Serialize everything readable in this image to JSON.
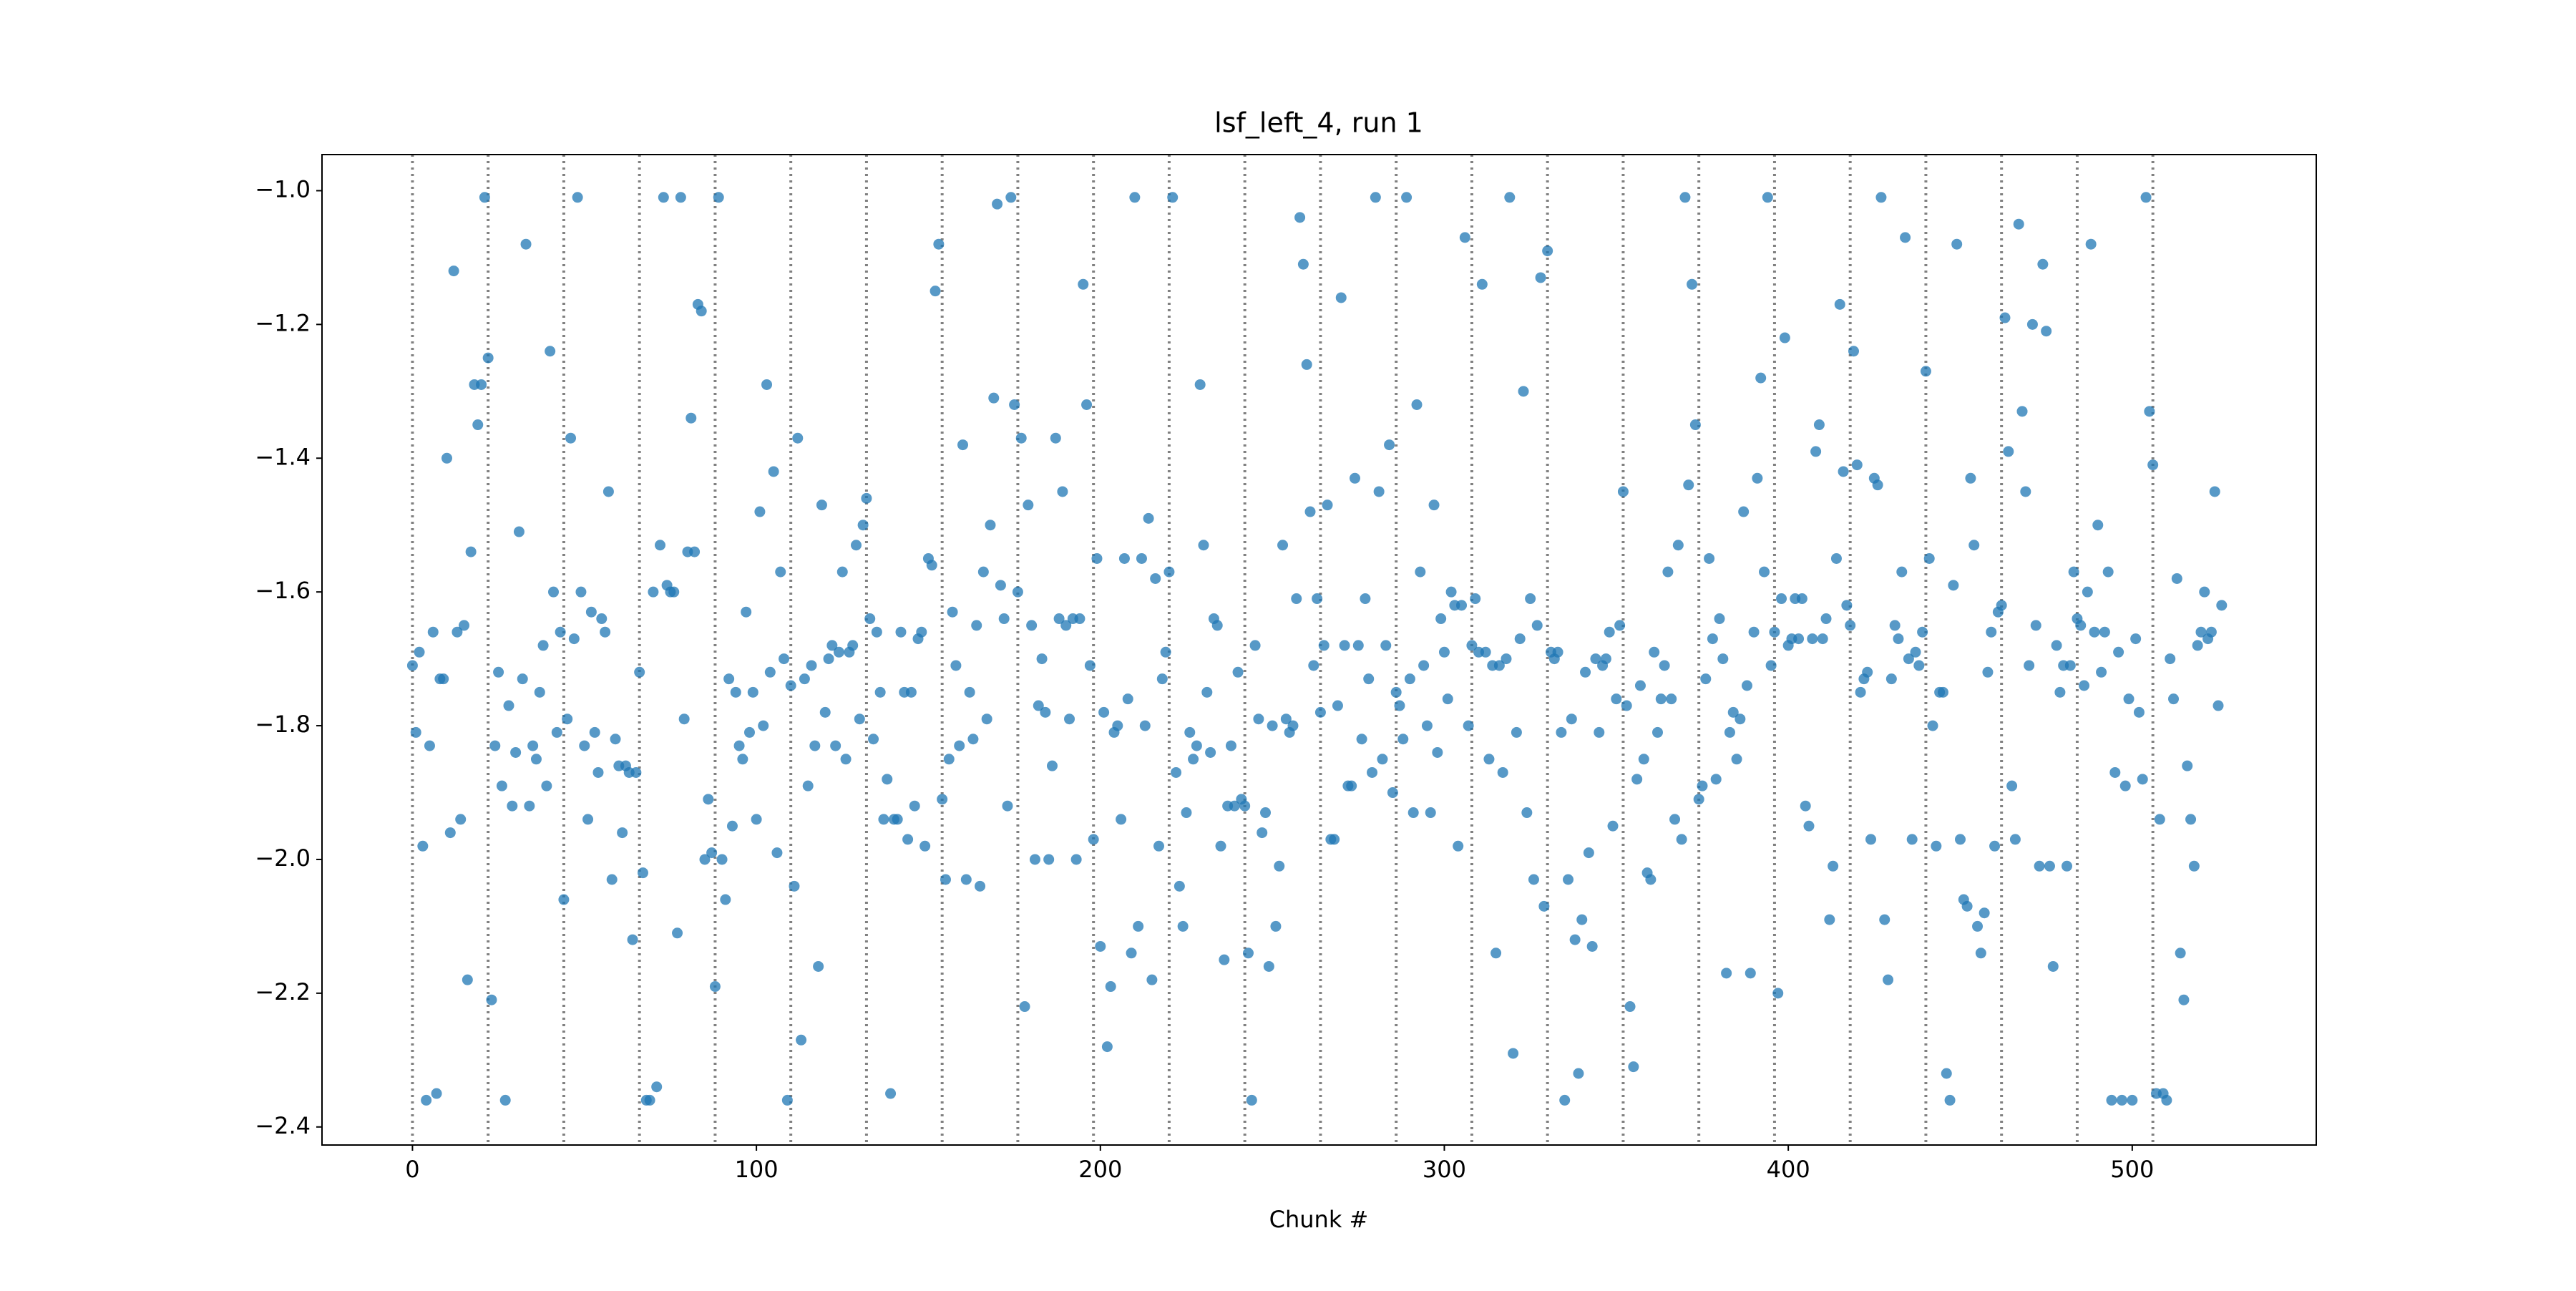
{
  "chart_data": {
    "type": "scatter",
    "title": "lsf_left_4, run 1",
    "xlabel": "Chunk #",
    "xlim": [
      -26.3,
      553.5
    ],
    "ylim": [
      -2.427,
      -0.946
    ],
    "xticks": [
      0,
      100,
      200,
      300,
      400,
      500
    ],
    "yticks": [
      {
        "value": -2.4,
        "label": "−2.4"
      },
      {
        "value": -2.2,
        "label": "−2.2"
      },
      {
        "value": -2.0,
        "label": "−2.0"
      },
      {
        "value": -1.8,
        "label": "−1.8"
      },
      {
        "value": -1.6,
        "label": "−1.6"
      },
      {
        "value": -1.4,
        "label": "−1.4"
      },
      {
        "value": -1.2,
        "label": "−1.2"
      },
      {
        "value": -1.0,
        "label": "−1.0"
      }
    ],
    "vlines": [
      0,
      22,
      44,
      66,
      88,
      110,
      132,
      154,
      176,
      198,
      220,
      242,
      264,
      286,
      308,
      330,
      352,
      374,
      396,
      418,
      440,
      462,
      484,
      506
    ],
    "vline_color": "#808080",
    "series": [
      {
        "color": "#1f77b4",
        "x": [
          0,
          1,
          2,
          3,
          4,
          5,
          6,
          7,
          8,
          9,
          10,
          11,
          12,
          13,
          14,
          15,
          16,
          17,
          18,
          19,
          20,
          21,
          22,
          23,
          24,
          25,
          26,
          27,
          28,
          29,
          30,
          31,
          32,
          33,
          34,
          35,
          36,
          37,
          38,
          39,
          40,
          41,
          42,
          43,
          44,
          45,
          46,
          47,
          48,
          49,
          50,
          51,
          52,
          53,
          54,
          55,
          56,
          57,
          58,
          59,
          60,
          61,
          62,
          63,
          64,
          65,
          66,
          67,
          68,
          69,
          70,
          71,
          72,
          73,
          74,
          75,
          76,
          77,
          78,
          79,
          80,
          81,
          82,
          83,
          84,
          85,
          86,
          87,
          88,
          89,
          90,
          91,
          92,
          93,
          94,
          95,
          96,
          97,
          98,
          99,
          100,
          101,
          102,
          103,
          104,
          105,
          106,
          107,
          108,
          109,
          110,
          111,
          112,
          113,
          114,
          115,
          116,
          117,
          118,
          119,
          120,
          121,
          122,
          123,
          124,
          125,
          126,
          127,
          128,
          129,
          130,
          131,
          132,
          133,
          134,
          135,
          136,
          137,
          138,
          139,
          140,
          141,
          142,
          143,
          144,
          145,
          146,
          147,
          148,
          149,
          150,
          151,
          152,
          153,
          154,
          155,
          156,
          157,
          158,
          159,
          160,
          161,
          162,
          163,
          164,
          165,
          166,
          167,
          168,
          169,
          170,
          171,
          172,
          173,
          174,
          175,
          176,
          177,
          178,
          179,
          180,
          181,
          182,
          183,
          184,
          185,
          186,
          187,
          188,
          189,
          190,
          191,
          192,
          193,
          194,
          195,
          196,
          197,
          198,
          199,
          200,
          201,
          202,
          203,
          204,
          205,
          206,
          207,
          208,
          209,
          210,
          211,
          212,
          213,
          214,
          215,
          216,
          217,
          218,
          219,
          220,
          221,
          222,
          223,
          224,
          225,
          226,
          227,
          228,
          229,
          230,
          231,
          232,
          233,
          234,
          235,
          236,
          237,
          238,
          239,
          240,
          241,
          242,
          243,
          244,
          245,
          246,
          247,
          248,
          249,
          250,
          251,
          252,
          253,
          254,
          255,
          256,
          257,
          258,
          259,
          260,
          261,
          262,
          263,
          264,
          265,
          266,
          267,
          268,
          269,
          270,
          271,
          272,
          273,
          274,
          275,
          276,
          277,
          278,
          279,
          280,
          281,
          282,
          283,
          284,
          285,
          286,
          287,
          288,
          289,
          290,
          291,
          292,
          293,
          294,
          295,
          296,
          297,
          298,
          299,
          300,
          301,
          302,
          303,
          304,
          305,
          306,
          307,
          308,
          309,
          310,
          311,
          312,
          313,
          314,
          315,
          316,
          317,
          318,
          319,
          320,
          321,
          322,
          323,
          324,
          325,
          326,
          327,
          328,
          329,
          330,
          331,
          332,
          333,
          334,
          335,
          336,
          337,
          338,
          339,
          340,
          341,
          342,
          343,
          344,
          345,
          346,
          347,
          348,
          349,
          350,
          351,
          352,
          353,
          354,
          355,
          356,
          357,
          358,
          359,
          360,
          361,
          362,
          363,
          364,
          365,
          366,
          367,
          368,
          369,
          370,
          371,
          372,
          373,
          374,
          375,
          376,
          377,
          378,
          379,
          380,
          381,
          382,
          383,
          384,
          385,
          386,
          387,
          388,
          389,
          390,
          391,
          392,
          393,
          394,
          395,
          396,
          397,
          398,
          399,
          400,
          401,
          402,
          403,
          404,
          405,
          406,
          407,
          408,
          409,
          410,
          411,
          412,
          413,
          414,
          415,
          416,
          417,
          418,
          419,
          420,
          421,
          422,
          423,
          424,
          425,
          426,
          427,
          428,
          429,
          430,
          431,
          432,
          433,
          434,
          435,
          436,
          437,
          438,
          439,
          440,
          441,
          442,
          443,
          444,
          445,
          446,
          447,
          448,
          449,
          450,
          451,
          452,
          453,
          454,
          455,
          456,
          457,
          458,
          459,
          460,
          461,
          462,
          463,
          464,
          465,
          466,
          467,
          468,
          469,
          470,
          471,
          472,
          473,
          474,
          475,
          476,
          477,
          478,
          479,
          480,
          481,
          482,
          483,
          484,
          485,
          486,
          487,
          488,
          489,
          490,
          491,
          492,
          493,
          494,
          495,
          496,
          497,
          498,
          499,
          500,
          501,
          502,
          503,
          504,
          505,
          506,
          507,
          508,
          509,
          510,
          511,
          512,
          513,
          514,
          515,
          516,
          517,
          518,
          519,
          520,
          521,
          522,
          523,
          524,
          525,
          526
        ],
        "values": [
          -1.71,
          -1.81,
          -1.69,
          -1.98,
          -2.36,
          -1.83,
          -1.66,
          -2.35,
          -1.73,
          -1.73,
          -1.4,
          -1.96,
          -1.12,
          -1.66,
          -1.94,
          -1.65,
          -2.18,
          -1.54,
          -1.29,
          -1.35,
          -1.29,
          -1.01,
          -1.25,
          -2.21,
          -1.83,
          -1.72,
          -1.89,
          -2.36,
          -1.77,
          -1.92,
          -1.84,
          -1.51,
          -1.73,
          -1.08,
          -1.92,
          -1.83,
          -1.85,
          -1.75,
          -1.68,
          -1.89,
          -1.24,
          -1.6,
          -1.81,
          -1.66,
          -2.06,
          -1.79,
          -1.37,
          -1.67,
          -1.01,
          -1.6,
          -1.83,
          -1.94,
          -1.63,
          -1.81,
          -1.87,
          -1.64,
          -1.66,
          -1.45,
          -2.03,
          -1.82,
          -1.86,
          -1.96,
          -1.86,
          -1.87,
          -2.12,
          -1.87,
          -1.72,
          -2.02,
          -2.36,
          -2.36,
          -1.6,
          -2.34,
          -1.53,
          -1.01,
          -1.59,
          -1.6,
          -1.6,
          -2.11,
          -1.01,
          -1.79,
          -1.54,
          -1.34,
          -1.54,
          -1.17,
          -1.18,
          -2.0,
          -1.91,
          -1.99,
          -2.19,
          -1.01,
          -2.0,
          -2.06,
          -1.73,
          -1.95,
          -1.75,
          -1.83,
          -1.85,
          -1.63,
          -1.81,
          -1.75,
          -1.94,
          -1.48,
          -1.8,
          -1.29,
          -1.72,
          -1.42,
          -1.99,
          -1.57,
          -1.7,
          -2.36,
          -1.74,
          -2.04,
          -1.37,
          -2.27,
          -1.73,
          -1.89,
          -1.71,
          -1.83,
          -2.16,
          -1.47,
          -1.78,
          -1.7,
          -1.68,
          -1.83,
          -1.69,
          -1.57,
          -1.85,
          -1.69,
          -1.68,
          -1.53,
          -1.79,
          -1.5,
          -1.46,
          -1.64,
          -1.82,
          -1.66,
          -1.75,
          -1.94,
          -1.88,
          -2.35,
          -1.94,
          -1.94,
          -1.66,
          -1.75,
          -1.97,
          -1.75,
          -1.92,
          -1.67,
          -1.66,
          -1.98,
          -1.55,
          -1.56,
          -1.15,
          -1.08,
          -1.91,
          -2.03,
          -1.85,
          -1.63,
          -1.71,
          -1.83,
          -1.38,
          -2.03,
          -1.75,
          -1.82,
          -1.65,
          -2.04,
          -1.57,
          -1.79,
          -1.5,
          -1.31,
          -1.02,
          -1.59,
          -1.64,
          -1.92,
          -1.01,
          -1.32,
          -1.6,
          -1.37,
          -2.22,
          -1.47,
          -1.65,
          -2.0,
          -1.77,
          -1.7,
          -1.78,
          -2.0,
          -1.86,
          -1.37,
          -1.64,
          -1.45,
          -1.65,
          -1.79,
          -1.64,
          -2.0,
          -1.64,
          -1.14,
          -1.32,
          -1.71,
          -1.97,
          -1.55,
          -2.13,
          -1.78,
          -2.28,
          -2.19,
          -1.81,
          -1.8,
          -1.94,
          -1.55,
          -1.76,
          -2.14,
          -1.01,
          -2.1,
          -1.55,
          -1.8,
          -1.49,
          -2.18,
          -1.58,
          -1.98,
          -1.73,
          -1.69,
          -1.57,
          -1.01,
          -1.87,
          -2.04,
          -2.1,
          -1.93,
          -1.81,
          -1.85,
          -1.83,
          -1.29,
          -1.53,
          -1.75,
          -1.84,
          -1.64,
          -1.65,
          -1.98,
          -2.15,
          -1.92,
          -1.83,
          -1.92,
          -1.72,
          -1.91,
          -1.92,
          -2.14,
          -2.36,
          -1.68,
          -1.79,
          -1.96,
          -1.93,
          -2.16,
          -1.8,
          -2.1,
          -2.01,
          -1.53,
          -1.79,
          -1.81,
          -1.8,
          -1.61,
          -1.04,
          -1.11,
          -1.26,
          -1.48,
          -1.71,
          -1.61,
          -1.78,
          -1.68,
          -1.47,
          -1.97,
          -1.97,
          -1.77,
          -1.16,
          -1.68,
          -1.89,
          -1.89,
          -1.43,
          -1.68,
          -1.82,
          -1.61,
          -1.73,
          -1.87,
          -1.01,
          -1.45,
          -1.85,
          -1.68,
          -1.38,
          -1.9,
          -1.75,
          -1.77,
          -1.82,
          -1.01,
          -1.73,
          -1.93,
          -1.32,
          -1.57,
          -1.71,
          -1.8,
          -1.93,
          -1.47,
          -1.84,
          -1.64,
          -1.69,
          -1.76,
          -1.6,
          -1.62,
          -1.98,
          -1.62,
          -1.07,
          -1.8,
          -1.68,
          -1.61,
          -1.69,
          -1.14,
          -1.69,
          -1.85,
          -1.71,
          -2.14,
          -1.71,
          -1.87,
          -1.7,
          -1.01,
          -2.29,
          -1.81,
          -1.67,
          -1.3,
          -1.93,
          -1.61,
          -2.03,
          -1.65,
          -1.13,
          -2.07,
          -1.09,
          -1.69,
          -1.7,
          -1.69,
          -1.81,
          -2.36,
          -2.03,
          -1.79,
          -2.12,
          -2.32,
          -2.09,
          -1.72,
          -1.99,
          -2.13,
          -1.7,
          -1.81,
          -1.71,
          -1.7,
          -1.66,
          -1.95,
          -1.76,
          -1.65,
          -1.45,
          -1.77,
          -2.22,
          -2.31,
          -1.88,
          -1.74,
          -1.85,
          -2.02,
          -2.03,
          -1.69,
          -1.81,
          -1.76,
          -1.71,
          -1.57,
          -1.76,
          -1.94,
          -1.53,
          -1.97,
          -1.01,
          -1.44,
          -1.14,
          -1.35,
          -1.91,
          -1.89,
          -1.73,
          -1.55,
          -1.67,
          -1.88,
          -1.64,
          -1.7,
          -2.17,
          -1.81,
          -1.78,
          -1.85,
          -1.79,
          -1.48,
          -1.74,
          -2.17,
          -1.66,
          -1.43,
          -1.28,
          -1.57,
          -1.01,
          -1.71,
          -1.66,
          -2.2,
          -1.61,
          -1.22,
          -1.68,
          -1.67,
          -1.61,
          -1.67,
          -1.61,
          -1.92,
          -1.95,
          -1.67,
          -1.39,
          -1.35,
          -1.67,
          -1.64,
          -2.09,
          -2.01,
          -1.55,
          -1.17,
          -1.42,
          -1.62,
          -1.65,
          -1.24,
          -1.41,
          -1.75,
          -1.73,
          -1.72,
          -1.97,
          -1.43,
          -1.44,
          -1.01,
          -2.09,
          -2.18,
          -1.73,
          -1.65,
          -1.67,
          -1.57,
          -1.07,
          -1.7,
          -1.97,
          -1.69,
          -1.71,
          -1.66,
          -1.27,
          -1.55,
          -1.8,
          -1.98,
          -1.75,
          -1.75,
          -2.32,
          -2.36,
          -1.59,
          -1.08,
          -1.97,
          -2.06,
          -2.07,
          -1.43,
          -1.53,
          -2.1,
          -2.14,
          -2.08,
          -1.72,
          -1.66,
          -1.98,
          -1.63,
          -1.62,
          -1.19,
          -1.39,
          -1.89,
          -1.97,
          -1.05,
          -1.33,
          -1.45,
          -1.71,
          -1.2,
          -1.65,
          -2.01,
          -1.11,
          -1.21,
          -2.01,
          -2.16,
          -1.68,
          -1.75,
          -1.71,
          -2.01,
          -1.71,
          -1.57,
          -1.64,
          -1.65,
          -1.74,
          -1.6,
          -1.08,
          -1.66,
          -1.5,
          -1.72,
          -1.66,
          -1.57,
          -2.36,
          -1.87,
          -1.69,
          -2.36,
          -1.89,
          -1.76,
          -2.36,
          -1.67,
          -1.78,
          -1.88,
          -1.01,
          -1.33,
          -1.41,
          -2.35,
          -1.94,
          -2.35,
          -2.36,
          -1.7,
          -1.76,
          -1.58,
          -2.14,
          -2.21,
          -1.86,
          -1.94,
          -2.01,
          -1.68,
          -1.66,
          -1.6,
          -1.67,
          -1.66,
          -1.45,
          -1.77,
          -1.62
        ]
      }
    ]
  }
}
